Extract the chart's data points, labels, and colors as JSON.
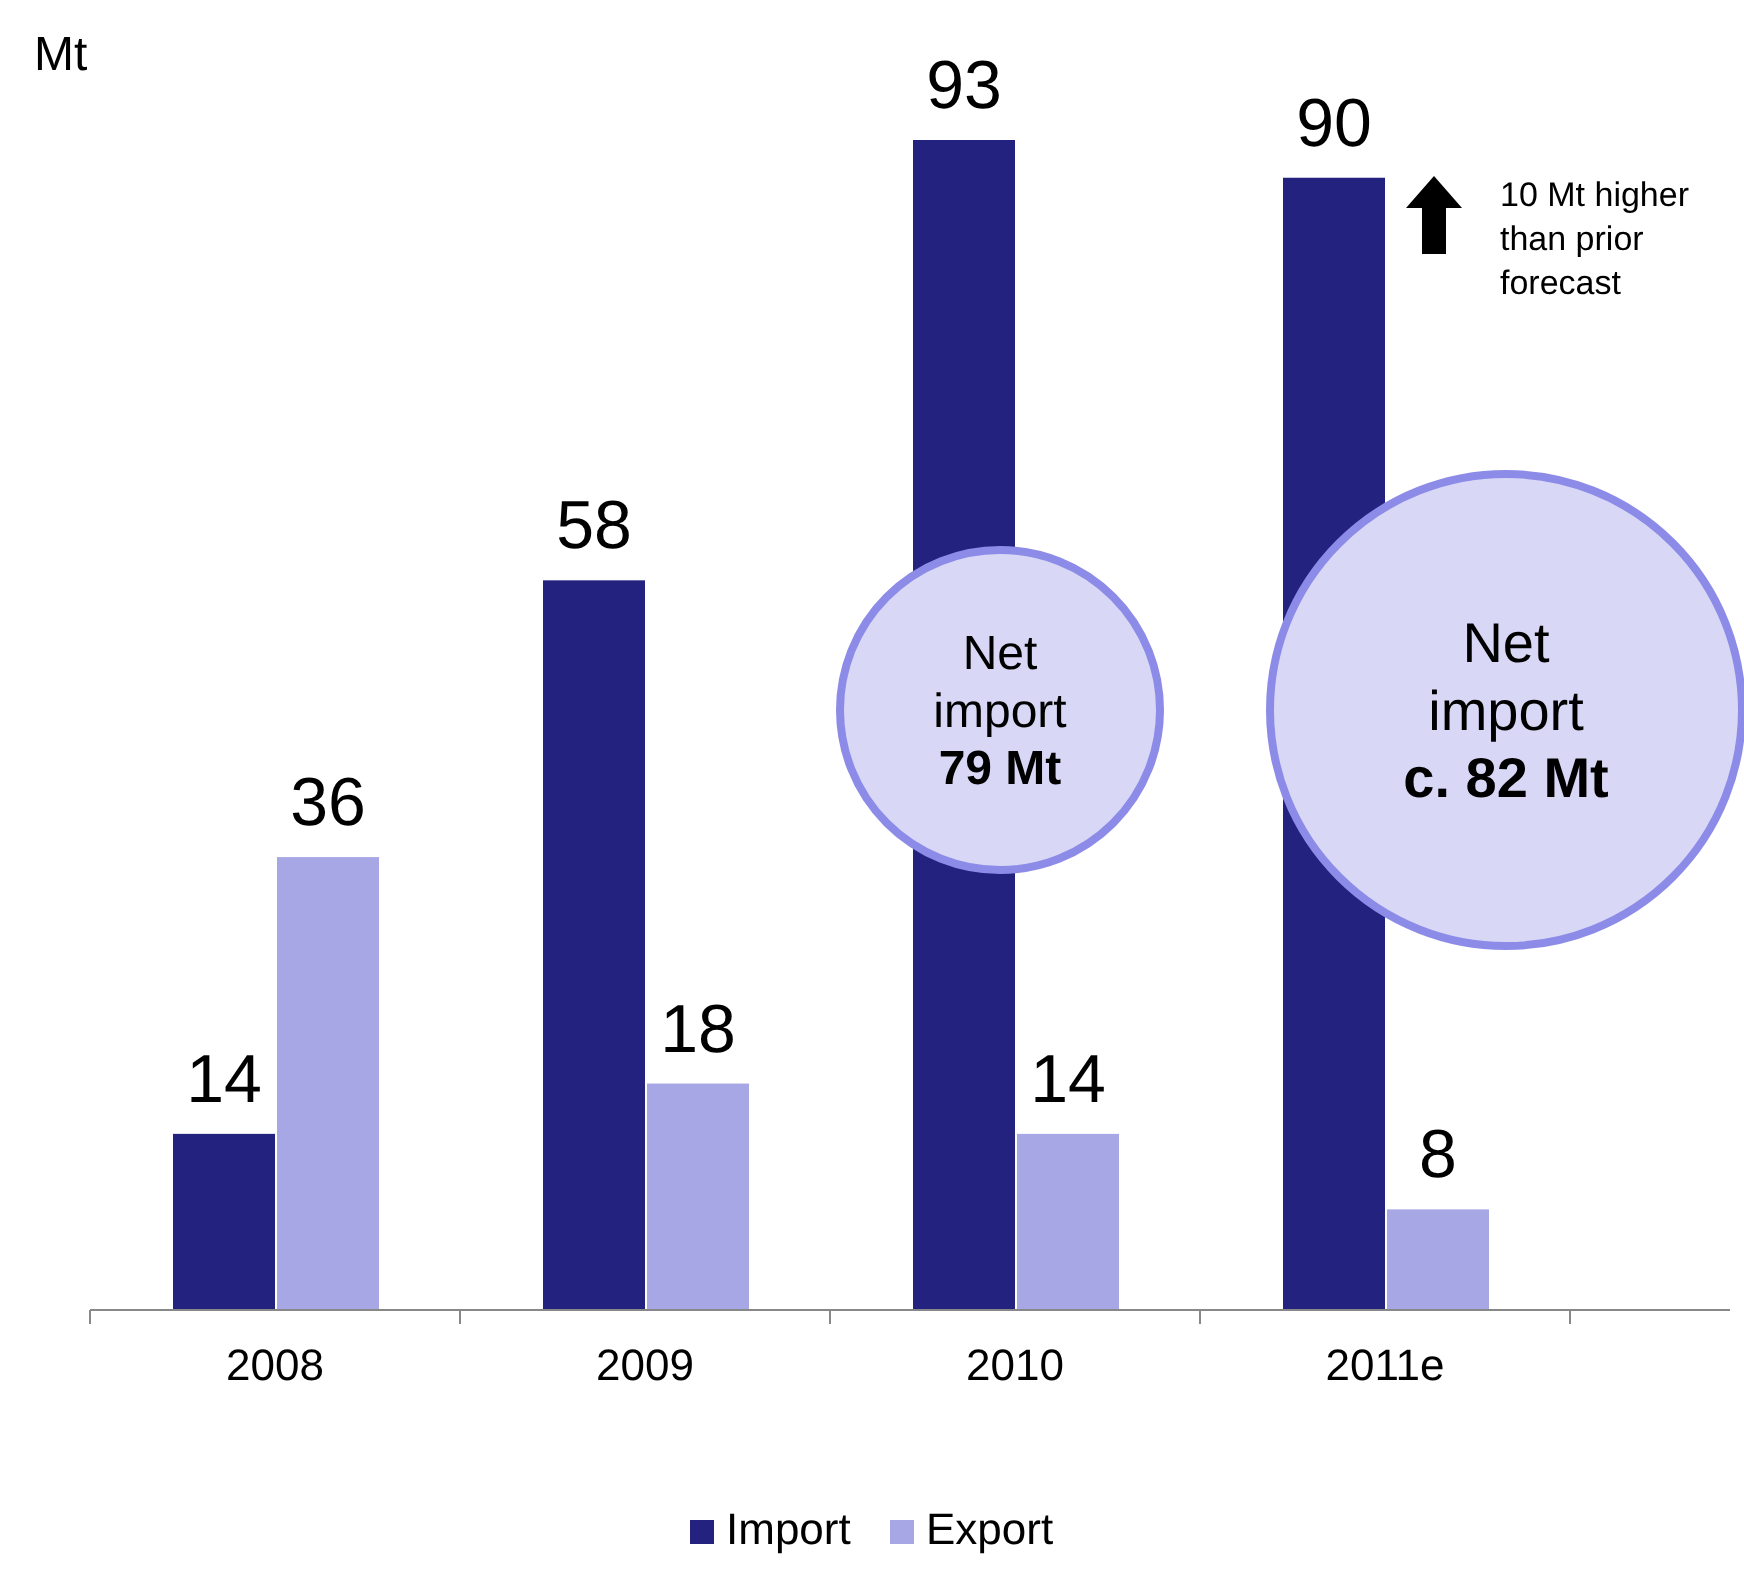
{
  "chart_data": {
    "type": "bar",
    "ylabel": "Mt",
    "categories": [
      "2008",
      "2009",
      "2010",
      "2011e"
    ],
    "series": [
      {
        "name": "Import",
        "color": "#23237f",
        "values": [
          14,
          58,
          93,
          90
        ]
      },
      {
        "name": "Export",
        "color": "#a7a7e6",
        "values": [
          36,
          18,
          14,
          8
        ]
      }
    ],
    "data_labels": true,
    "legend": "bottom",
    "annotations": [
      "10 Mt higher\nthan prior\nforecast",
      "Net\nimport\n79 Mt",
      "Net\nimport\nc. 82 Mt"
    ]
  }
}
